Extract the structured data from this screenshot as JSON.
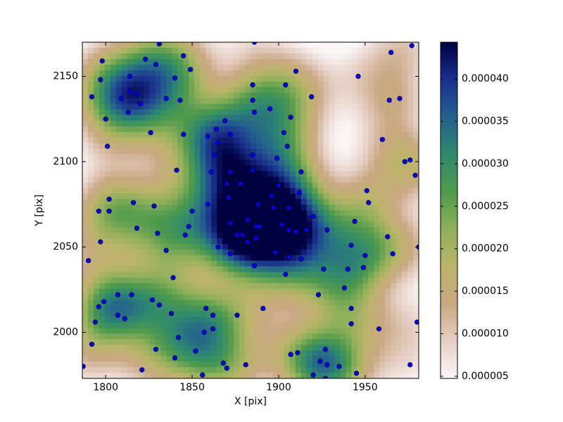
{
  "chart_data": {
    "type": "scatter",
    "xlabel": "X [pix]",
    "ylabel": "Y [pix]",
    "xlim": [
      1786.5,
      1981
    ],
    "ylim": [
      1973,
      2170
    ],
    "xticks": [
      1800,
      1850,
      1900,
      1950
    ],
    "yticks": [
      2000,
      2050,
      2100,
      2150
    ],
    "color": "#0000ff",
    "colormap": [
      "#fbf7f7",
      "#e6cfc5",
      "#c9a882",
      "#bcb46a",
      "#8fb05a",
      "#4e9a4c",
      "#2e8a6e",
      "#24608e",
      "#1a2f8e",
      "#000040"
    ],
    "clim": [
      4.75e-06,
      4.43e-05
    ],
    "cticks": [
      {
        "value": 5e-06,
        "label": "0.000005"
      },
      {
        "value": 1e-05,
        "label": "0.000010"
      },
      {
        "value": 1.5e-05,
        "label": "0.000015"
      },
      {
        "value": 2e-05,
        "label": "0.000020"
      },
      {
        "value": 2.5e-05,
        "label": "0.000025"
      },
      {
        "value": 3e-05,
        "label": "0.000030"
      },
      {
        "value": 3.5e-05,
        "label": "0.000035"
      },
      {
        "value": 4e-05,
        "label": "0.000040"
      }
    ],
    "x": [
      1787,
      1790,
      1792,
      1792,
      1794,
      1796,
      1796,
      1797,
      1797,
      1798,
      1799,
      1800,
      1801,
      1802,
      1802,
      1807,
      1807,
      1809,
      1811,
      1814,
      1815,
      1814,
      1813,
      1816,
      1818,
      1820,
      1818,
      1823,
      1826,
      1827,
      1828,
      1829,
      1830,
      1831,
      1831,
      1829,
      1821,
      1835,
      1835,
      1838,
      1839,
      1840,
      1840,
      1841,
      1842,
      1843,
      1845,
      1845,
      1846,
      1848,
      1849,
      1850,
      1852,
      1856,
      1857,
      1858,
      1859,
      1859,
      1861,
      1862,
      1863,
      1862,
      1864,
      1865,
      1865,
      1868,
      1869,
      1870,
      1870,
      1871,
      1872,
      1872,
      1872,
      1872,
      1876,
      1876,
      1878,
      1879,
      1881,
      1882,
      1882,
      1885,
      1885,
      1885,
      1886,
      1885,
      1886,
      1886,
      1887,
      1887,
      1888,
      1889,
      1891,
      1895,
      1896,
      1897,
      1898,
      1899,
      1900,
      1902,
      1903,
      1904,
      1904,
      1905,
      1906,
      1906,
      1906,
      1907,
      1907,
      1910,
      1910,
      1911,
      1912,
      1913,
      1913,
      1916,
      1919,
      1920,
      1920,
      1923,
      1924,
      1926,
      1927,
      1928,
      1928,
      1927,
      1935,
      1938,
      1940,
      1942,
      1942,
      1942,
      1944,
      1945,
      1946,
      1949,
      1950,
      1951,
      1952,
      1958,
      1960,
      1963,
      1964,
      1965,
      1966,
      1970,
      1973,
      1976,
      1976,
      1977,
      1979,
      1980,
      1981
    ],
    "y": [
      1980,
      2042,
      1993,
      2138,
      2006,
      2015,
      2071,
      2053,
      2148,
      2159,
      2018,
      2125,
      2109,
      2071,
      2078,
      2022,
      2010,
      2137,
      2008,
      2150,
      2022,
      2141,
      2129,
      2076,
      2140,
      2134,
      2061,
      2160,
      2117,
      2019,
      2074,
      2157,
      2058,
      2169,
      2016,
      1990,
      1978,
      2137,
      2048,
      2011,
      2032,
      1985,
      2149,
      2095,
      1997,
      2136,
      2116,
      2162,
      2057,
      2062,
      2154,
      2071,
      1989,
      1975,
      2000,
      2014,
      2075,
      2115,
      2094,
      2010,
      2104,
      2002,
      2119,
      2111,
      2050,
      1982,
      2124,
      1979,
      2087,
      2079,
      2094,
      2116,
      2064,
      2046,
      2057,
      2010,
      2087,
      2057,
      1981,
      2066,
      2053,
      2104,
      2095,
      2136,
      2170,
      2145,
      2129,
      2039,
      2055,
      2062,
      2075,
      2062,
      2014,
      2131,
      2080,
      2073,
      2047,
      2102,
      2086,
      2063,
      2117,
      2145,
      2034,
      2109,
      2060,
      2044,
      2073,
      1987,
      2126,
      2153,
      2059,
      1988,
      2082,
      2043,
      2094,
      2060,
      2138,
      2068,
      1975,
      2022,
      1983,
      2037,
      1990,
      1981,
      2060,
      1973,
      1980,
      2026,
      2037,
      2051,
      2014,
      2005,
      2065,
      1976,
      2150,
      2038,
      2045,
      2083,
      2076,
      2002,
      2113,
      2056,
      2136,
      2164,
      2046,
      2137,
      2100,
      1981,
      2101,
      2168,
      2092,
      2006,
      2050
    ]
  }
}
